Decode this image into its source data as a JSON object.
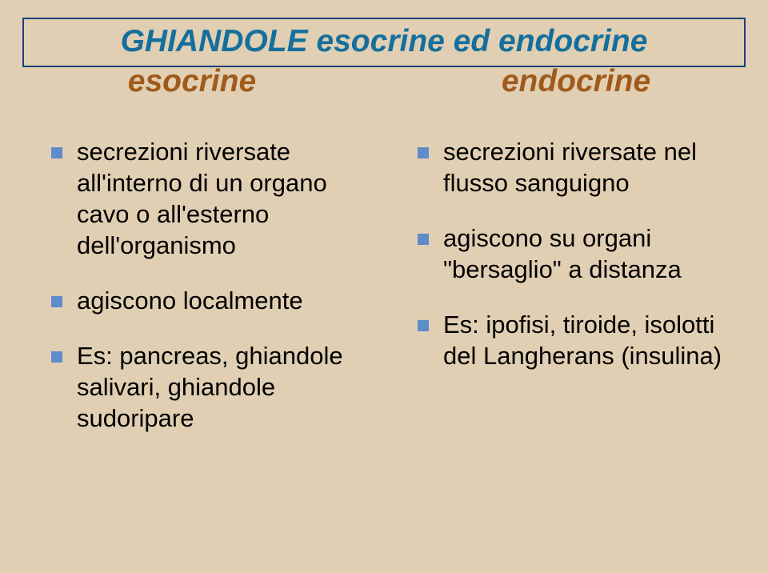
{
  "colors": {
    "slide_bg": "#e1cfb3",
    "title_text": "#156f9d",
    "title_border": "#1a3f7a",
    "subhead_text": "#a05a1a",
    "body_text": "#000000",
    "bullet_fill": "#5c8cc9"
  },
  "title": {
    "line1": "GHIANDOLE esocrine ed endocrine",
    "sub_left": "esocrine",
    "sub_right": "endocrine"
  },
  "left_items": [
    "secrezioni riversate all'interno di un organo cavo o all'esterno dell'organismo",
    "agiscono localmente",
    "Es: pancreas, ghiandole salivari, ghiandole  sudoripare"
  ],
  "right_items": [
    "secrezioni riversate nel flusso sanguigno",
    "agiscono su organi \"bersaglio\" a distanza",
    "Es: ipofisi, tiroide, isolotti del Langherans (insulina)"
  ]
}
